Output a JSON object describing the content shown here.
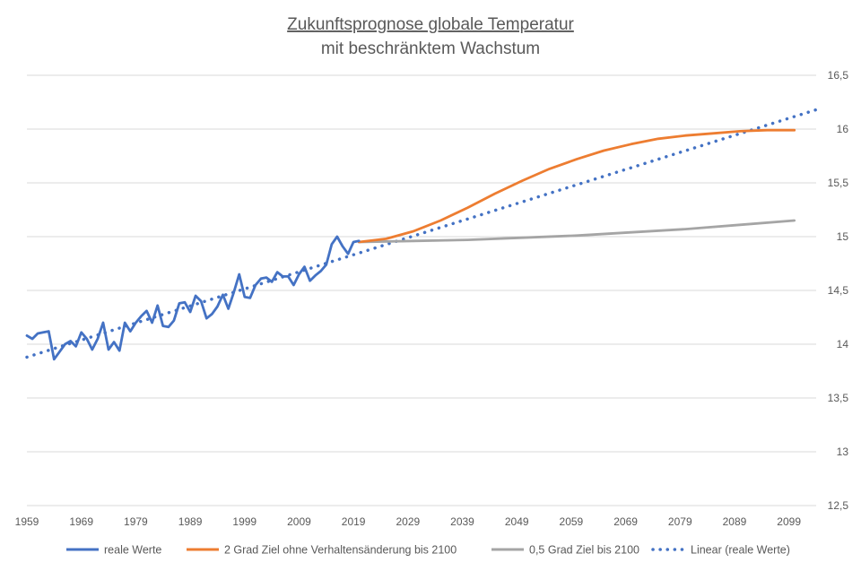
{
  "chart_data": {
    "type": "line",
    "title": "Zukunftsprognose globale Temperatur",
    "subtitle": "mit beschränktem Wachstum",
    "xlabel": "",
    "ylabel": "",
    "xlim": [
      1959,
      2104
    ],
    "ylim": [
      12.5,
      16.5
    ],
    "grid": true,
    "y_axis_position": "right",
    "legend_position": "bottom",
    "x_ticks": [
      1959,
      1969,
      1979,
      1989,
      1999,
      2009,
      2019,
      2029,
      2039,
      2049,
      2059,
      2069,
      2079,
      2089,
      2099
    ],
    "x_tick_labels": [
      "1959",
      "1969",
      "1979",
      "1989",
      "1999",
      "2009",
      "2019",
      "2029",
      "2039",
      "2049",
      "2059",
      "2069",
      "2079",
      "2089",
      "2099"
    ],
    "y_ticks": [
      12.5,
      13,
      13.5,
      14,
      14.5,
      15,
      15.5,
      16,
      16.5
    ],
    "y_tick_labels": [
      "12,5",
      "13",
      "13,5",
      "14",
      "14,5",
      "15",
      "15,5",
      "16",
      "16,5"
    ],
    "series": [
      {
        "name": "reale Werte",
        "style": "solid",
        "color": "#4472c4",
        "x": [
          1959,
          1960,
          1961,
          1962,
          1963,
          1964,
          1965,
          1966,
          1967,
          1968,
          1969,
          1970,
          1971,
          1972,
          1973,
          1974,
          1975,
          1976,
          1977,
          1978,
          1979,
          1980,
          1981,
          1982,
          1983,
          1984,
          1985,
          1986,
          1987,
          1988,
          1989,
          1990,
          1991,
          1992,
          1993,
          1994,
          1995,
          1996,
          1997,
          1998,
          1999,
          2000,
          2001,
          2002,
          2003,
          2004,
          2005,
          2006,
          2007,
          2008,
          2009,
          2010,
          2011,
          2012,
          2013,
          2014,
          2015,
          2016,
          2017,
          2018,
          2019,
          2020
        ],
        "values": [
          14.08,
          14.05,
          14.1,
          14.11,
          14.12,
          13.86,
          13.93,
          14.0,
          14.03,
          13.98,
          14.11,
          14.05,
          13.95,
          14.05,
          14.2,
          13.95,
          14.02,
          13.94,
          14.2,
          14.12,
          14.2,
          14.26,
          14.31,
          14.2,
          14.36,
          14.17,
          14.16,
          14.22,
          14.38,
          14.39,
          14.3,
          14.45,
          14.4,
          14.24,
          14.28,
          14.35,
          14.46,
          14.33,
          14.48,
          14.65,
          14.44,
          14.43,
          14.55,
          14.61,
          14.62,
          14.58,
          14.67,
          14.63,
          14.63,
          14.55,
          14.65,
          14.72,
          14.59,
          14.64,
          14.68,
          14.74,
          14.93,
          15.0,
          14.91,
          14.84,
          14.95,
          14.96
        ]
      },
      {
        "name": "2 Grad Ziel ohne Verhaltensänderung bis 2100",
        "style": "solid",
        "color": "#ed7d31",
        "x": [
          2020,
          2025,
          2030,
          2035,
          2040,
          2045,
          2050,
          2055,
          2060,
          2065,
          2070,
          2075,
          2080,
          2085,
          2090,
          2095,
          2100
        ],
        "values": [
          14.95,
          14.98,
          15.05,
          15.15,
          15.27,
          15.4,
          15.52,
          15.63,
          15.72,
          15.8,
          15.86,
          15.91,
          15.94,
          15.96,
          15.98,
          15.99,
          15.99
        ]
      },
      {
        "name": "0,5 Grad Ziel bis 2100",
        "style": "solid",
        "color": "#a5a5a5",
        "x": [
          2020,
          2030,
          2040,
          2050,
          2060,
          2070,
          2080,
          2090,
          2100
        ],
        "values": [
          14.95,
          14.96,
          14.97,
          14.99,
          15.01,
          15.04,
          15.07,
          15.11,
          15.15
        ]
      },
      {
        "name": "Linear (reale Werte)",
        "style": "dotted",
        "color": "#4472c4",
        "x": [
          1959,
          2104
        ],
        "values": [
          13.88,
          16.18
        ]
      }
    ]
  }
}
